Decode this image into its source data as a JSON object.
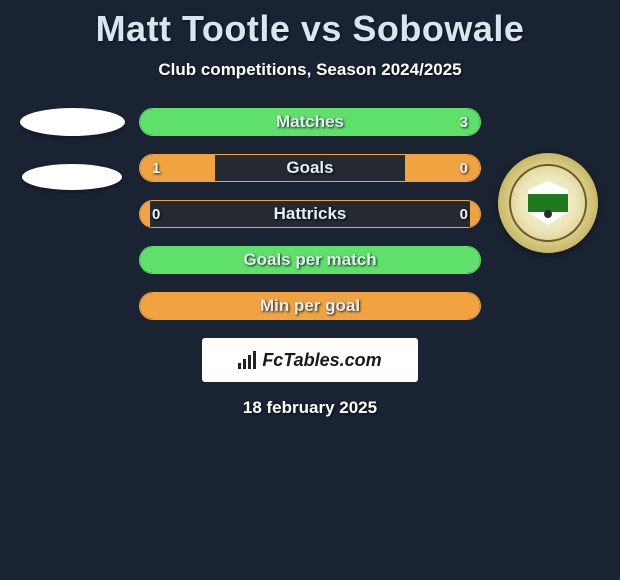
{
  "title": "Matt Tootle vs Sobowale",
  "subtitle": "Club competitions, Season 2024/2025",
  "date": "18 february 2025",
  "brand": "FcTables.com",
  "colors": {
    "background": "#1a2332",
    "green": "#5fe06a",
    "orange": "#f0a340",
    "title_text": "#d9e6f0"
  },
  "stats": [
    {
      "label": "Matches",
      "variant": "green",
      "left_val": "",
      "right_val": "3",
      "left_pct": 42,
      "right_pct": 58
    },
    {
      "label": "Goals",
      "variant": "orange",
      "left_val": "1",
      "right_val": "0",
      "left_pct": 22,
      "right_pct": 22
    },
    {
      "label": "Hattricks",
      "variant": "orange",
      "left_val": "0",
      "right_val": "0",
      "left_pct": 3,
      "right_pct": 3
    },
    {
      "label": "Goals per match",
      "variant": "green",
      "left_val": "",
      "right_val": "",
      "left_pct": 50,
      "right_pct": 50
    },
    {
      "label": "Min per goal",
      "variant": "orange",
      "left_val": "",
      "right_val": "",
      "left_pct": 50,
      "right_pct": 50
    }
  ],
  "left_avatar": {
    "emblem1": true,
    "emblem2": true
  },
  "right_avatar": {
    "crest": true
  }
}
